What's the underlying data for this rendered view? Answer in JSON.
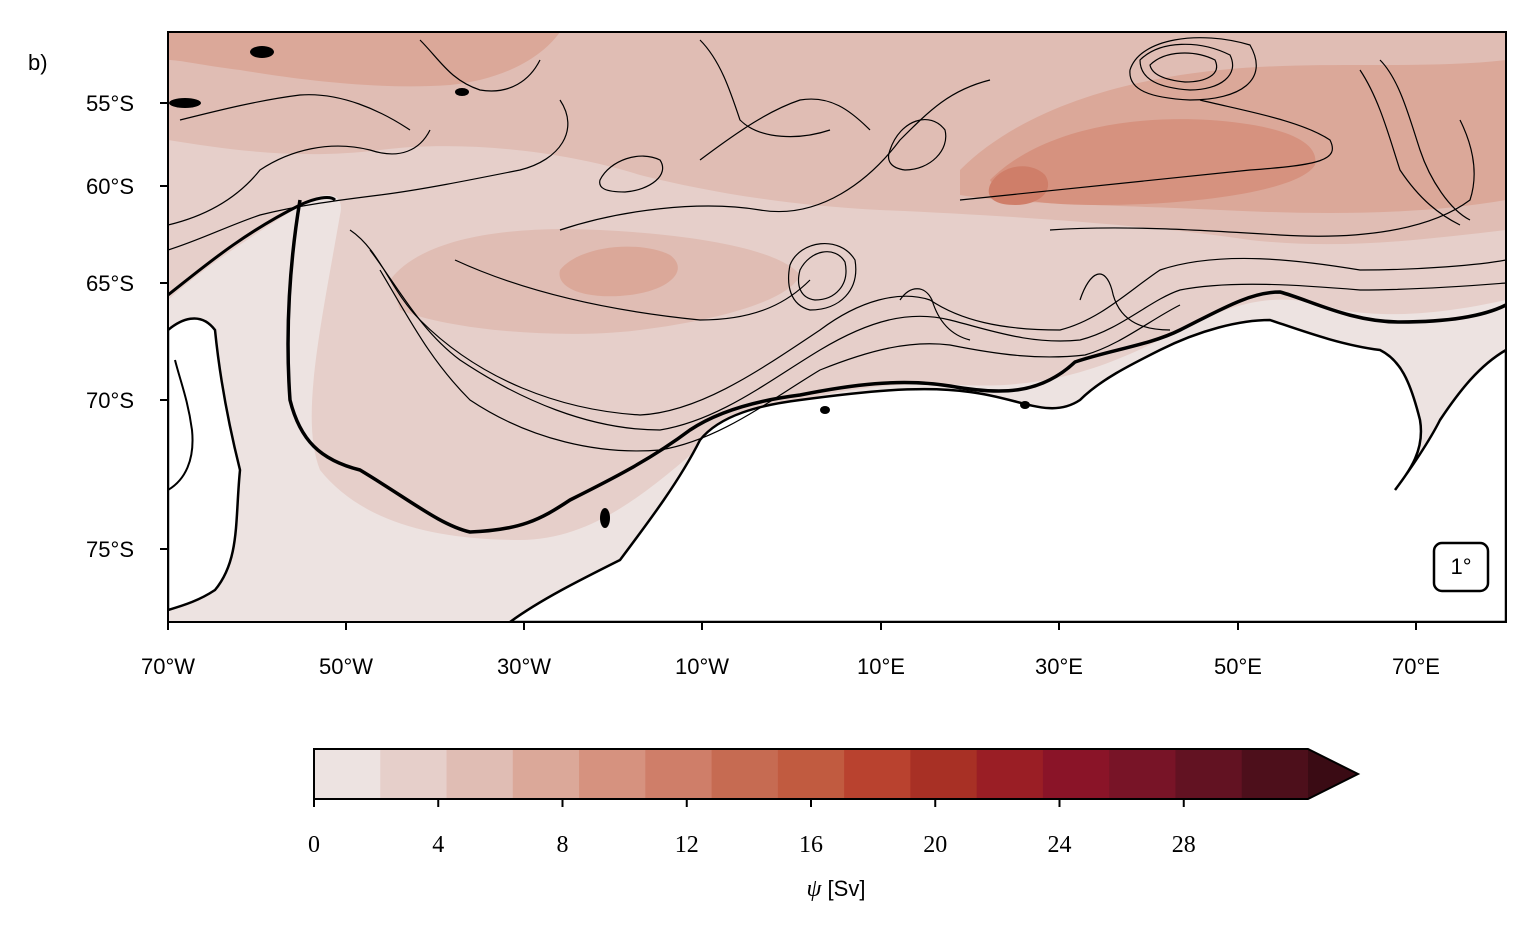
{
  "panel_label": "b)",
  "resolution_badge": "1°",
  "map": {
    "lon_ticks": [
      "70°W",
      "50°W",
      "30°W",
      "10°W",
      "10°E",
      "30°E",
      "50°E",
      "70°E"
    ],
    "lat_ticks": [
      "55°S",
      "60°S",
      "65°S",
      "70°S",
      "75°S"
    ]
  },
  "colorbar": {
    "symbol": "ψ",
    "unit": " [Sv]",
    "ticks": [
      "0",
      "4",
      "8",
      "12",
      "16",
      "20",
      "24",
      "28"
    ],
    "extend": "max",
    "colors": [
      "#ede3e1",
      "#e6cfca",
      "#e0bdb4",
      "#dba899",
      "#d6927f",
      "#cf7e69",
      "#c66b52",
      "#c15b40",
      "#b9422f",
      "#a83025",
      "#9a1e25",
      "#8a1428",
      "#781427",
      "#621222",
      "#4d0f1b",
      "#3a0b14"
    ]
  }
}
